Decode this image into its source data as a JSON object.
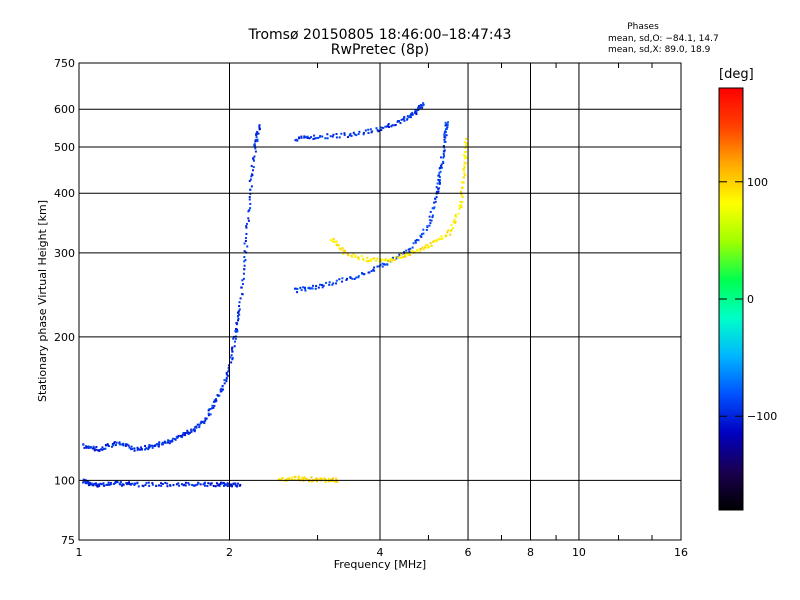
{
  "header": {
    "title_line1": "Tromsø 20150805 18:46:00–18:47:43",
    "title_line2": "RwPretec (8p)",
    "phases_title": "Phases",
    "phases_line1": "mean, sd,O: −84.1, 14.7",
    "phases_line2": "mean, sd,X:  89.0, 18.9"
  },
  "colorbar": {
    "unit_label": "[deg]",
    "range": [
      -180,
      180
    ],
    "ticks": [
      {
        "value": 100,
        "label": "100"
      },
      {
        "value": 0,
        "label": "0"
      },
      {
        "value": -100,
        "label": "−100"
      }
    ],
    "stops": [
      "#000000",
      "#1a0050",
      "#0000c0",
      "#0050ff",
      "#00b4ff",
      "#00ffc8",
      "#00ff50",
      "#a0ff00",
      "#ffff00",
      "#ffaa00",
      "#ff4000",
      "#ff0000"
    ]
  },
  "chart_data": {
    "type": "scatter",
    "title": "Tromsø 20150805 18:46:00–18:47:43",
    "subtitle": "RwPretec (8p)",
    "xlabel": "Frequency [MHz]",
    "ylabel": "Stationary phase Virtual Height [km]",
    "xscale": "log",
    "yscale": "log",
    "xlim": [
      1,
      16
    ],
    "ylim": [
      75,
      750
    ],
    "x_ticks": [
      1,
      2,
      4,
      6,
      8,
      10,
      16
    ],
    "y_ticks": [
      75,
      100,
      200,
      300,
      400,
      500,
      600,
      750
    ],
    "grid": true,
    "color_by": "phase [deg]",
    "traces": [
      {
        "desc": "O-mode E-layer trace",
        "phase": -100,
        "points": [
          [
            1.02,
            100
          ],
          [
            1.05,
            98
          ],
          [
            1.1,
            98
          ],
          [
            1.2,
            98.5
          ],
          [
            1.3,
            98
          ],
          [
            1.5,
            98
          ],
          [
            1.7,
            98
          ],
          [
            1.9,
            98
          ],
          [
            2.0,
            98
          ],
          [
            2.1,
            98
          ]
        ]
      },
      {
        "desc": "X-mode E-layer trace",
        "phase": 95,
        "points": [
          [
            2.5,
            100
          ],
          [
            2.7,
            101
          ],
          [
            2.9,
            100.5
          ],
          [
            3.1,
            100
          ],
          [
            3.3,
            100
          ]
        ]
      },
      {
        "desc": "O-mode spread trace low",
        "phase": -95,
        "points": [
          [
            1.02,
            118
          ],
          [
            1.1,
            116
          ],
          [
            1.2,
            120
          ],
          [
            1.3,
            116
          ],
          [
            1.4,
            118
          ],
          [
            1.5,
            120
          ],
          [
            1.6,
            124
          ],
          [
            1.7,
            128
          ],
          [
            1.8,
            135
          ],
          [
            1.9,
            150
          ],
          [
            2.0,
            170
          ],
          [
            2.05,
            200
          ],
          [
            2.1,
            230
          ],
          [
            2.15,
            300
          ],
          [
            2.2,
            400
          ],
          [
            2.25,
            500
          ],
          [
            2.3,
            560
          ]
        ]
      },
      {
        "desc": "O-mode F-layer base",
        "phase": -90,
        "points": [
          [
            2.7,
            250
          ],
          [
            3.0,
            255
          ],
          [
            3.5,
            265
          ],
          [
            4.0,
            280
          ],
          [
            4.5,
            300
          ],
          [
            5.0,
            340
          ],
          [
            5.2,
            400
          ],
          [
            5.3,
            450
          ],
          [
            5.4,
            520
          ],
          [
            5.45,
            570
          ]
        ]
      },
      {
        "desc": "O-mode F upper",
        "phase": -95,
        "points": [
          [
            2.7,
            520
          ],
          [
            3.0,
            525
          ],
          [
            3.5,
            530
          ],
          [
            4.0,
            545
          ],
          [
            4.4,
            565
          ],
          [
            4.7,
            590
          ],
          [
            4.9,
            620
          ]
        ]
      },
      {
        "desc": "X-mode F-layer",
        "phase": 90,
        "points": [
          [
            3.2,
            320
          ],
          [
            3.4,
            300
          ],
          [
            3.8,
            290
          ],
          [
            4.2,
            290
          ],
          [
            4.6,
            300
          ],
          [
            5.0,
            310
          ],
          [
            5.5,
            330
          ],
          [
            5.8,
            380
          ],
          [
            5.9,
            450
          ],
          [
            5.95,
            520
          ]
        ]
      }
    ]
  }
}
